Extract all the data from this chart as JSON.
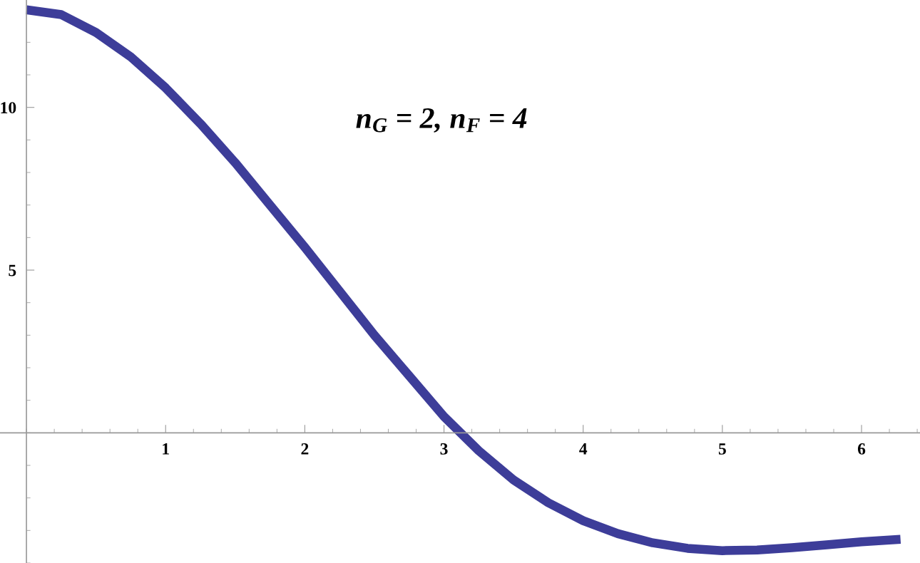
{
  "chart_data": {
    "type": "line",
    "x": [
      0,
      0.25,
      0.5,
      0.75,
      1,
      1.25,
      1.5,
      1.75,
      2,
      2.25,
      2.5,
      2.75,
      3,
      3.25,
      3.5,
      3.75,
      4,
      4.25,
      4.5,
      4.75,
      5,
      5.25,
      5.5,
      5.75,
      6,
      6.28
    ],
    "series": [
      {
        "color": "#3d3d99",
        "values": [
          13.0,
          12.85,
          12.3,
          11.55,
          10.6,
          9.5,
          8.3,
          7.0,
          5.7,
          4.35,
          3.0,
          1.75,
          0.5,
          -0.55,
          -1.45,
          -2.15,
          -2.7,
          -3.1,
          -3.38,
          -3.55,
          -3.62,
          -3.6,
          -3.53,
          -3.44,
          -3.35,
          -3.27
        ]
      }
    ],
    "xlim": [
      -0.19,
      6.42
    ],
    "ylim": [
      -4.0,
      13.3
    ],
    "xticks": [
      1,
      2,
      3,
      4,
      5,
      6
    ],
    "yticks": [
      5,
      10
    ],
    "grid": false,
    "legend": false,
    "marker": "none",
    "line_style": "solid",
    "annotations": [
      "n$_{G}$ = 2, n$_{F}$ = 4"
    ]
  }
}
